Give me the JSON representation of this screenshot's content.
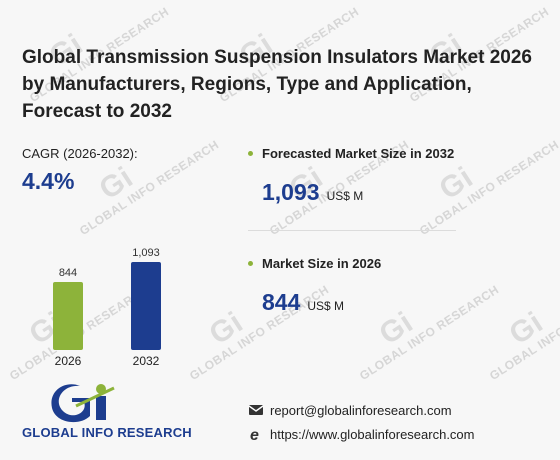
{
  "title": "Global Transmission Suspension Insulators Market 2026 by Manufacturers, Regions, Type and Application, Forecast to 2032",
  "cagr": {
    "label": "CAGR (2026-2032):",
    "value": "4.4%"
  },
  "forecast": {
    "label": "Forecasted Market Size in 2032",
    "value": "1,093",
    "unit": "US$ M"
  },
  "current": {
    "label": "Market Size in 2026",
    "value": "844",
    "unit": "US$ M"
  },
  "watermark": "GLOBAL INFO RESEARCH",
  "brand": {
    "name": "GLOBAL INFO RESEARCH",
    "logo_text": "Gi"
  },
  "contact": {
    "email": "report@globalinforesearch.com",
    "website": "https://www.globalinforesearch.com"
  },
  "icons": {
    "email": "envelope-icon",
    "website": "browser-e-icon",
    "bullet": "bullet-dot-icon"
  },
  "colors": {
    "bar_2026": "#8db33a",
    "bar_2032": "#1d3d8f",
    "accent": "#1d3d8f",
    "bullet": "#8db33a"
  },
  "chart_data": {
    "type": "bar",
    "categories": [
      "2026",
      "2032"
    ],
    "values": [
      844,
      1093
    ],
    "value_labels": [
      "844",
      "1,093"
    ],
    "ylim": [
      0,
      1093
    ]
  }
}
